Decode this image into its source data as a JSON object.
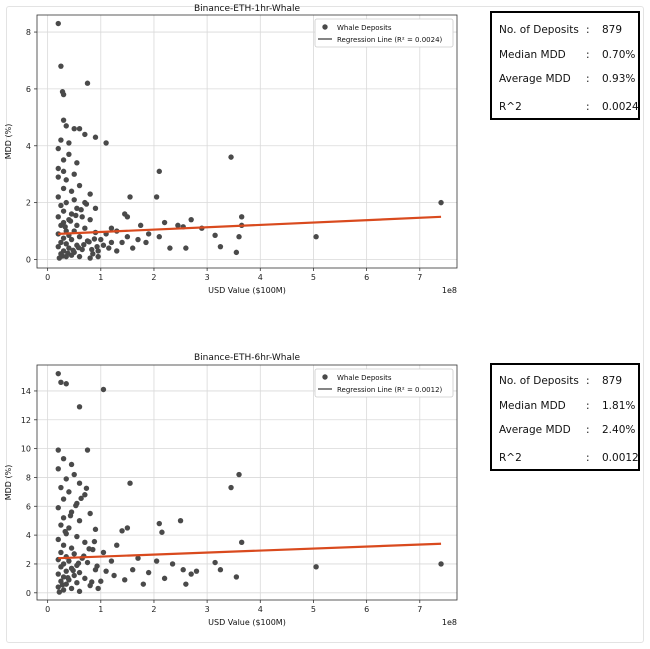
{
  "chart_data": [
    {
      "type": "scatter",
      "title": "Binance-ETH-1hr-Whale",
      "xlabel": "USD Value ($100M)",
      "ylabel": "MDD (%)",
      "x_offset_label": "1e8",
      "xlim": [
        -0.2,
        7.7
      ],
      "ylim": [
        -0.3,
        8.6
      ],
      "xticks": [
        0,
        1,
        2,
        3,
        4,
        5,
        6,
        7
      ],
      "yticks": [
        0,
        2,
        4,
        6,
        8
      ],
      "grid": true,
      "legend_position": "top-right",
      "legend": [
        "Whale Deposits",
        "Regression Line (R² = 0.0024)"
      ],
      "series": [
        {
          "name": "Whale Deposits",
          "color": "#4a4a4a",
          "points": [
            [
              0.2,
              8.3
            ],
            [
              0.25,
              6.8
            ],
            [
              0.28,
              5.9
            ],
            [
              0.3,
              5.8
            ],
            [
              0.75,
              6.2
            ],
            [
              0.3,
              4.9
            ],
            [
              0.35,
              4.7
            ],
            [
              0.5,
              4.6
            ],
            [
              0.6,
              4.6
            ],
            [
              0.7,
              4.4
            ],
            [
              0.9,
              4.3
            ],
            [
              0.25,
              4.2
            ],
            [
              0.4,
              4.1
            ],
            [
              1.1,
              4.1
            ],
            [
              0.2,
              3.9
            ],
            [
              0.4,
              3.7
            ],
            [
              0.3,
              3.5
            ],
            [
              0.55,
              3.4
            ],
            [
              0.2,
              3.2
            ],
            [
              0.3,
              3.1
            ],
            [
              0.5,
              3.0
            ],
            [
              0.2,
              2.9
            ],
            [
              0.35,
              2.8
            ],
            [
              0.6,
              2.6
            ],
            [
              0.3,
              2.5
            ],
            [
              0.45,
              2.4
            ],
            [
              0.8,
              2.3
            ],
            [
              0.2,
              2.2
            ],
            [
              0.5,
              2.1
            ],
            [
              0.35,
              2.0
            ],
            [
              0.7,
              2.0
            ],
            [
              0.25,
              1.9
            ],
            [
              0.55,
              1.8
            ],
            [
              0.9,
              1.8
            ],
            [
              0.3,
              1.7
            ],
            [
              0.45,
              1.6
            ],
            [
              0.65,
              1.5
            ],
            [
              0.2,
              1.5
            ],
            [
              0.4,
              1.4
            ],
            [
              0.8,
              1.4
            ],
            [
              0.3,
              1.3
            ],
            [
              0.55,
              1.2
            ],
            [
              0.25,
              1.2
            ],
            [
              0.7,
              1.1
            ],
            [
              0.35,
              1.0
            ],
            [
              0.5,
              1.0
            ],
            [
              0.9,
              0.95
            ],
            [
              0.2,
              0.9
            ],
            [
              0.4,
              0.85
            ],
            [
              0.6,
              0.8
            ],
            [
              0.3,
              0.75
            ],
            [
              0.45,
              0.7
            ],
            [
              0.75,
              0.65
            ],
            [
              0.25,
              0.6
            ],
            [
              0.35,
              0.55
            ],
            [
              0.55,
              0.5
            ],
            [
              0.2,
              0.45
            ],
            [
              0.4,
              0.4
            ],
            [
              0.65,
              0.35
            ],
            [
              0.3,
              0.3
            ],
            [
              0.5,
              0.25
            ],
            [
              0.25,
              0.2
            ],
            [
              0.45,
              0.15
            ],
            [
              0.35,
              0.1
            ],
            [
              0.6,
              0.1
            ],
            [
              0.8,
              0.05
            ],
            [
              0.95,
              0.1
            ],
            [
              0.85,
              0.2
            ],
            [
              0.95,
              0.3
            ],
            [
              1.05,
              0.5
            ],
            [
              1.0,
              0.7
            ],
            [
              1.1,
              0.9
            ],
            [
              1.2,
              1.1
            ],
            [
              1.3,
              1.0
            ],
            [
              1.2,
              0.6
            ],
            [
              1.15,
              0.4
            ],
            [
              1.3,
              0.3
            ],
            [
              1.4,
              0.6
            ],
            [
              1.5,
              0.8
            ],
            [
              1.45,
              1.6
            ],
            [
              1.55,
              2.2
            ],
            [
              1.5,
              1.5
            ],
            [
              1.6,
              0.4
            ],
            [
              1.7,
              0.7
            ],
            [
              1.75,
              1.2
            ],
            [
              1.85,
              0.6
            ],
            [
              1.9,
              0.9
            ],
            [
              2.05,
              2.2
            ],
            [
              2.1,
              3.1
            ],
            [
              2.2,
              1.3
            ],
            [
              2.1,
              0.8
            ],
            [
              2.3,
              0.4
            ],
            [
              2.45,
              1.2
            ],
            [
              2.55,
              1.15
            ],
            [
              2.6,
              0.4
            ],
            [
              2.7,
              1.4
            ],
            [
              2.9,
              1.1
            ],
            [
              3.15,
              0.85
            ],
            [
              3.25,
              0.45
            ],
            [
              3.45,
              3.6
            ],
            [
              3.55,
              0.25
            ],
            [
              3.6,
              0.8
            ],
            [
              3.65,
              1.5
            ],
            [
              3.65,
              1.2
            ],
            [
              5.05,
              0.8
            ],
            [
              7.4,
              2.0
            ],
            [
              0.22,
              0.05
            ],
            [
              0.28,
              0.12
            ],
            [
              0.38,
              0.22
            ],
            [
              0.48,
              0.32
            ],
            [
              0.58,
              0.42
            ],
            [
              0.68,
              0.52
            ],
            [
              0.78,
              0.62
            ],
            [
              0.88,
              0.72
            ],
            [
              0.33,
              1.15
            ],
            [
              0.43,
              1.35
            ],
            [
              0.53,
              1.55
            ],
            [
              0.63,
              1.75
            ],
            [
              0.73,
              1.95
            ],
            [
              0.83,
              0.35
            ],
            [
              0.93,
              0.45
            ]
          ]
        },
        {
          "name": "Regression Line (R² = 0.0024)",
          "type": "line",
          "color": "#d94a1e",
          "x": [
            0.2,
            7.4
          ],
          "y": [
            0.9,
            1.5
          ]
        }
      ]
    },
    {
      "type": "scatter",
      "title": "Binance-ETH-6hr-Whale",
      "xlabel": "USD Value ($100M)",
      "ylabel": "MDD (%)",
      "x_offset_label": "1e8",
      "xlim": [
        -0.2,
        7.7
      ],
      "ylim": [
        -0.5,
        15.8
      ],
      "xticks": [
        0,
        1,
        2,
        3,
        4,
        5,
        6,
        7
      ],
      "yticks": [
        0,
        2,
        4,
        6,
        8,
        10,
        12,
        14
      ],
      "grid": true,
      "legend_position": "top-right",
      "legend": [
        "Whale Deposits",
        "Regression Line (R² = 0.0012)"
      ],
      "series": [
        {
          "name": "Whale Deposits",
          "color": "#4a4a4a",
          "points": [
            [
              0.2,
              15.2
            ],
            [
              0.25,
              14.6
            ],
            [
              0.35,
              14.5
            ],
            [
              1.05,
              14.1
            ],
            [
              0.6,
              12.9
            ],
            [
              0.2,
              9.9
            ],
            [
              0.75,
              9.9
            ],
            [
              0.3,
              9.3
            ],
            [
              0.45,
              8.9
            ],
            [
              0.2,
              8.6
            ],
            [
              0.5,
              8.2
            ],
            [
              0.35,
              7.9
            ],
            [
              0.6,
              7.6
            ],
            [
              0.25,
              7.3
            ],
            [
              0.4,
              7.0
            ],
            [
              0.7,
              6.8
            ],
            [
              0.3,
              6.5
            ],
            [
              0.55,
              6.2
            ],
            [
              0.2,
              5.9
            ],
            [
              0.45,
              5.6
            ],
            [
              0.8,
              5.5
            ],
            [
              0.3,
              5.2
            ],
            [
              0.6,
              5.0
            ],
            [
              0.25,
              4.7
            ],
            [
              0.4,
              4.5
            ],
            [
              0.9,
              4.4
            ],
            [
              0.35,
              4.1
            ],
            [
              0.55,
              3.9
            ],
            [
              0.2,
              3.7
            ],
            [
              0.7,
              3.5
            ],
            [
              0.3,
              3.3
            ],
            [
              0.45,
              3.1
            ],
            [
              0.85,
              3.0
            ],
            [
              0.25,
              2.8
            ],
            [
              0.5,
              2.7
            ],
            [
              0.35,
              2.5
            ],
            [
              0.65,
              2.4
            ],
            [
              0.2,
              2.3
            ],
            [
              0.4,
              2.2
            ],
            [
              0.75,
              2.1
            ],
            [
              0.3,
              2.0
            ],
            [
              0.55,
              1.9
            ],
            [
              0.25,
              1.8
            ],
            [
              0.45,
              1.7
            ],
            [
              0.9,
              1.6
            ],
            [
              0.35,
              1.5
            ],
            [
              0.6,
              1.4
            ],
            [
              0.2,
              1.3
            ],
            [
              0.5,
              1.2
            ],
            [
              0.3,
              1.1
            ],
            [
              0.7,
              1.0
            ],
            [
              0.4,
              0.9
            ],
            [
              0.25,
              0.8
            ],
            [
              0.55,
              0.7
            ],
            [
              0.35,
              0.6
            ],
            [
              0.8,
              0.5
            ],
            [
              0.2,
              0.4
            ],
            [
              0.45,
              0.3
            ],
            [
              0.3,
              0.2
            ],
            [
              0.6,
              0.1
            ],
            [
              0.95,
              0.3
            ],
            [
              1.0,
              0.8
            ],
            [
              1.1,
              1.5
            ],
            [
              1.2,
              2.2
            ],
            [
              1.05,
              2.8
            ],
            [
              1.3,
              3.3
            ],
            [
              1.4,
              4.3
            ],
            [
              1.5,
              4.5
            ],
            [
              1.55,
              7.6
            ],
            [
              1.25,
              1.2
            ],
            [
              1.45,
              0.9
            ],
            [
              1.6,
              1.6
            ],
            [
              1.7,
              2.4
            ],
            [
              1.8,
              0.6
            ],
            [
              1.9,
              1.4
            ],
            [
              2.05,
              2.2
            ],
            [
              2.1,
              4.8
            ],
            [
              2.15,
              4.2
            ],
            [
              2.2,
              1.0
            ],
            [
              2.35,
              2.0
            ],
            [
              2.5,
              5.0
            ],
            [
              2.55,
              1.6
            ],
            [
              2.6,
              0.6
            ],
            [
              2.7,
              1.3
            ],
            [
              2.8,
              1.5
            ],
            [
              3.15,
              2.1
            ],
            [
              3.25,
              1.6
            ],
            [
              3.45,
              7.3
            ],
            [
              3.55,
              1.1
            ],
            [
              3.6,
              8.2
            ],
            [
              3.65,
              3.5
            ],
            [
              5.05,
              1.8
            ],
            [
              7.4,
              2.0
            ],
            [
              0.22,
              0.05
            ],
            [
              0.28,
              0.55
            ],
            [
              0.38,
              1.05
            ],
            [
              0.48,
              1.55
            ],
            [
              0.58,
              2.05
            ],
            [
              0.68,
              2.55
            ],
            [
              0.78,
              3.05
            ],
            [
              0.88,
              3.55
            ],
            [
              0.33,
              4.25
            ],
            [
              0.43,
              5.35
            ],
            [
              0.53,
              6.05
            ],
            [
              0.63,
              6.55
            ],
            [
              0.73,
              7.25
            ],
            [
              0.83,
              0.75
            ],
            [
              0.93,
              1.85
            ]
          ]
        },
        {
          "name": "Regression Line (R² = 0.0012)",
          "type": "line",
          "color": "#d94a1e",
          "x": [
            0.2,
            7.4
          ],
          "y": [
            2.4,
            3.4
          ]
        }
      ]
    }
  ],
  "stats_panels": [
    {
      "rows": [
        {
          "label": "No. of Deposits",
          "sep": ":",
          "value": "879"
        },
        {
          "label": "Median MDD",
          "sep": ":",
          "value": "0.70%"
        },
        {
          "label": "Average MDD",
          "sep": ":",
          "value": "0.93%"
        },
        {
          "label": "R^2",
          "sep": ":",
          "value": "0.0024"
        }
      ]
    },
    {
      "rows": [
        {
          "label": "No. of Deposits",
          "sep": ":",
          "value": "879"
        },
        {
          "label": "Median MDD",
          "sep": ":",
          "value": "1.81%"
        },
        {
          "label": "Average MDD",
          "sep": ":",
          "value": "2.40%"
        },
        {
          "label": "R^2",
          "sep": ":",
          "value": "0.0012"
        }
      ]
    }
  ]
}
